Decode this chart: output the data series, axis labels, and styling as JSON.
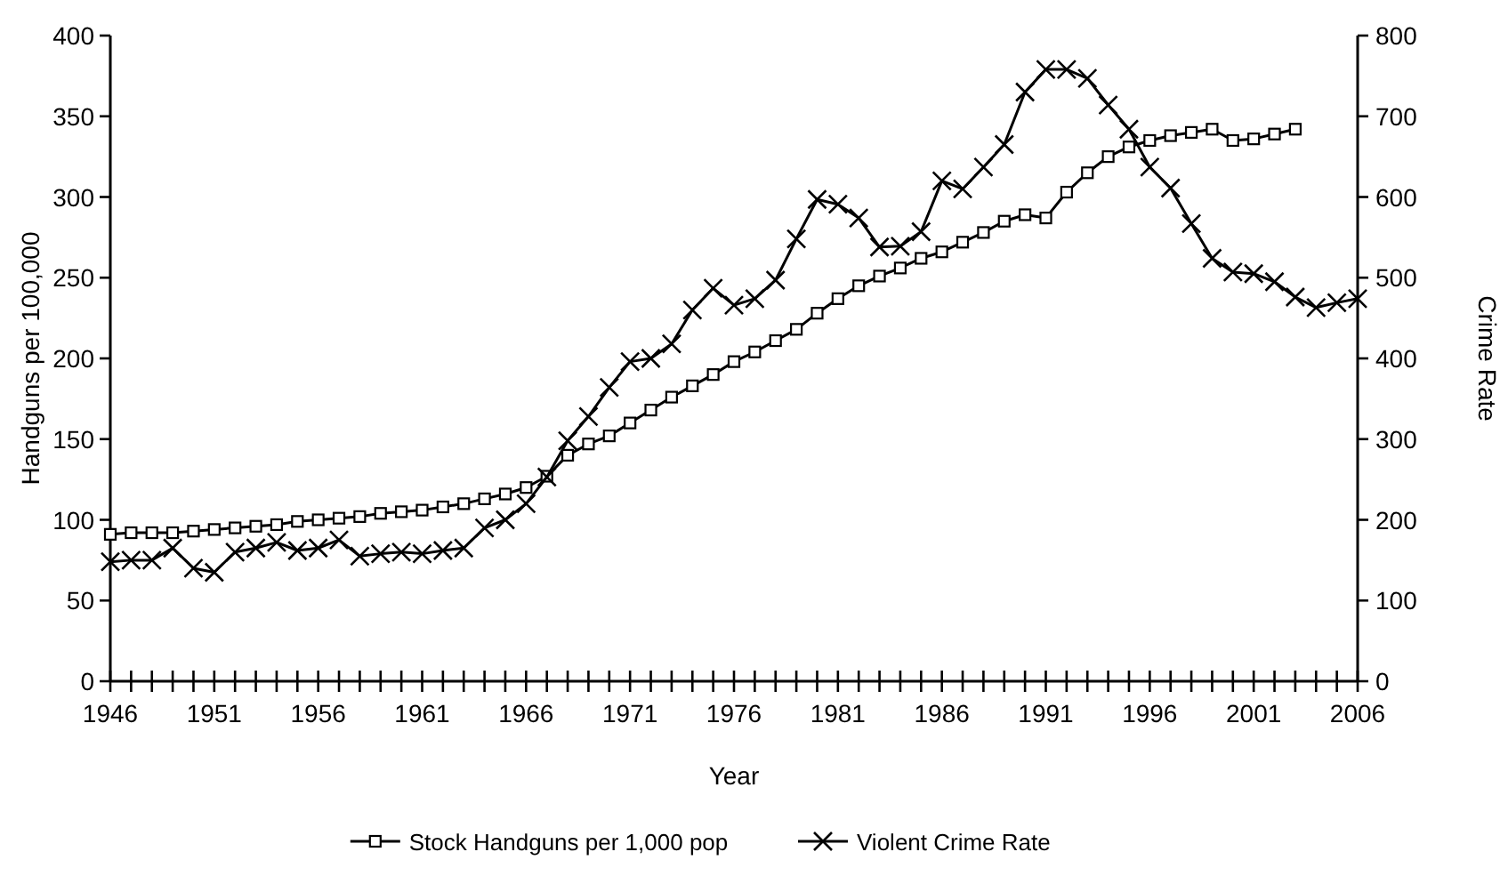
{
  "chart_data": {
    "type": "line",
    "xlabel": "Year",
    "ylabel": "Handguns per 100,000",
    "y2label": "Crime Rate",
    "x": [
      1946,
      1947,
      1948,
      1949,
      1950,
      1951,
      1952,
      1953,
      1954,
      1955,
      1956,
      1957,
      1958,
      1959,
      1960,
      1961,
      1962,
      1963,
      1964,
      1965,
      1966,
      1967,
      1968,
      1969,
      1970,
      1971,
      1972,
      1973,
      1974,
      1975,
      1976,
      1977,
      1978,
      1979,
      1980,
      1981,
      1982,
      1983,
      1984,
      1985,
      1986,
      1987,
      1988,
      1989,
      1990,
      1991,
      1992,
      1993,
      1994,
      1995,
      1996,
      1997,
      1998,
      1999,
      2000,
      2001,
      2002,
      2003,
      2004,
      2005,
      2006
    ],
    "series": [
      {
        "name": "Stock Handguns per 1,000 pop",
        "color": "#000000",
        "marker": "square",
        "values": [
          91,
          92,
          92,
          92,
          93,
          94,
          95,
          96,
          97,
          99,
          100,
          101,
          102,
          104,
          105,
          106,
          108,
          110,
          113,
          116,
          120,
          127,
          140,
          147,
          152,
          160,
          168,
          176,
          183,
          190,
          198,
          204,
          211,
          218,
          228,
          237,
          245,
          251,
          256,
          262,
          266,
          272,
          278,
          285,
          289,
          287,
          303,
          315,
          325,
          331,
          335,
          338,
          340,
          342,
          335,
          336,
          339,
          342,
          null,
          null,
          null
        ]
      },
      {
        "name": "Violent Crime Rate",
        "color": "#000000",
        "marker": "cross",
        "axis": "y2",
        "values": [
          148,
          150,
          150,
          165,
          140,
          135,
          160,
          165,
          172,
          162,
          165,
          175,
          155,
          158,
          160,
          158,
          162,
          165,
          190,
          200,
          220,
          253,
          298,
          328,
          364,
          396,
          400,
          418,
          460,
          487,
          466,
          474,
          497,
          548,
          597,
          591,
          574,
          538,
          539,
          557,
          620,
          610,
          637,
          665,
          730,
          758,
          758,
          747,
          714,
          684,
          637,
          611,
          567,
          524,
          507,
          505,
          495,
          476,
          463,
          469,
          474
        ]
      }
    ],
    "xlim": [
      1946,
      2006
    ],
    "xticks": [
      1946,
      {
        "value": 1947,
        "label": null
      },
      {
        "value": 1948,
        "label": null
      },
      {
        "value": 1949,
        "label": null
      },
      {
        "value": 1950,
        "label": null
      },
      1951,
      {
        "value": 1952,
        "label": null
      },
      {
        "value": 1953,
        "label": null
      },
      {
        "value": 1954,
        "label": null
      },
      {
        "value": 1955,
        "label": null
      },
      1956,
      {
        "value": 1957,
        "label": null
      },
      {
        "value": 1958,
        "label": null
      },
      {
        "value": 1959,
        "label": null
      },
      {
        "value": 1960,
        "label": null
      },
      1961,
      {
        "value": 1962,
        "label": null
      },
      {
        "value": 1963,
        "label": null
      },
      {
        "value": 1964,
        "label": null
      },
      {
        "value": 1965,
        "label": null
      },
      1966,
      {
        "value": 1967,
        "label": null
      },
      {
        "value": 1968,
        "label": null
      },
      {
        "value": 1969,
        "label": null
      },
      {
        "value": 1970,
        "label": null
      },
      1971,
      {
        "value": 1972,
        "label": null
      },
      {
        "value": 1973,
        "label": null
      },
      {
        "value": 1974,
        "label": null
      },
      {
        "value": 1975,
        "label": null
      },
      1976,
      {
        "value": 1977,
        "label": null
      },
      {
        "value": 1978,
        "label": null
      },
      {
        "value": 1979,
        "label": null
      },
      {
        "value": 1980,
        "label": null
      },
      1981,
      {
        "value": 1982,
        "label": null
      },
      {
        "value": 1983,
        "label": null
      },
      {
        "value": 1984,
        "label": null
      },
      {
        "value": 1985,
        "label": null
      },
      1986,
      {
        "value": 1987,
        "label": null
      },
      {
        "value": 1988,
        "label": null
      },
      {
        "value": 1989,
        "label": null
      },
      {
        "value": 1990,
        "label": null
      },
      1991,
      {
        "value": 1992,
        "label": null
      },
      {
        "value": 1993,
        "label": null
      },
      {
        "value": 1994,
        "label": null
      },
      {
        "value": 1995,
        "label": null
      },
      1996,
      {
        "value": 1997,
        "label": null
      },
      {
        "value": 1998,
        "label": null
      },
      {
        "value": 1999,
        "label": null
      },
      {
        "value": 2000,
        "label": null
      },
      2001,
      {
        "value": 2002,
        "label": null
      },
      {
        "value": 2003,
        "label": null
      },
      {
        "value": 2004,
        "label": null
      },
      {
        "value": 2005,
        "label": null
      },
      2006
    ],
    "ylim": [
      0,
      400
    ],
    "yticks": [
      0,
      50,
      100,
      150,
      200,
      250,
      300,
      350,
      400
    ],
    "y2lim": [
      0,
      800
    ],
    "y2ticks": [
      0,
      100,
      200,
      300,
      400,
      500,
      600,
      700,
      800
    ],
    "grid": false,
    "legend": "bottom",
    "line_style": "solid"
  }
}
